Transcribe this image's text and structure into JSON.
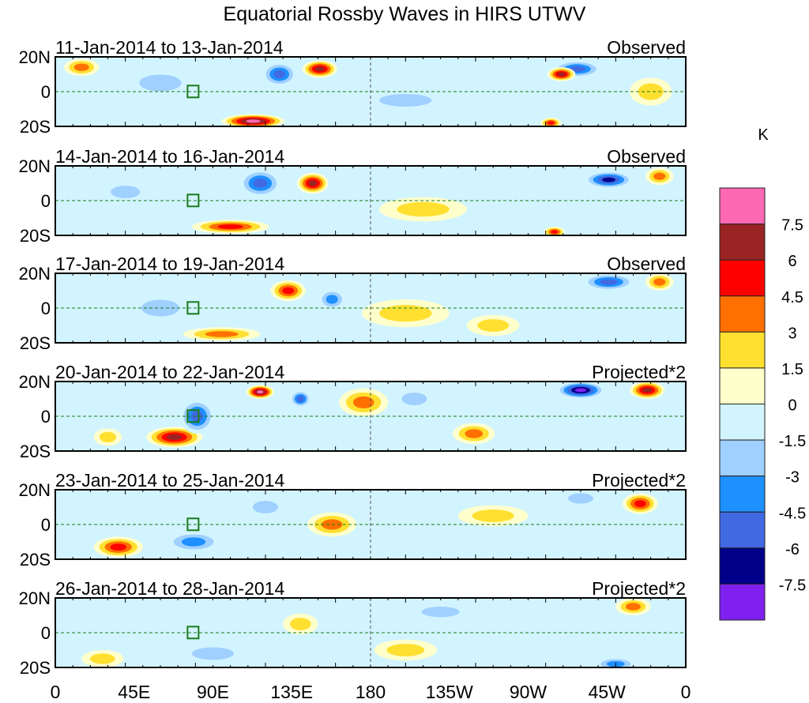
{
  "chart_data": {
    "type": "heatmap",
    "title": "Equatorial Rossby Waves in HIRS UTWV",
    "units": "K",
    "x_ticks": [
      "0",
      "45E",
      "90E",
      "135E",
      "180",
      "135W",
      "90W",
      "45W",
      "0"
    ],
    "y_ticks": [
      "20N",
      "0",
      "20S"
    ],
    "xlim": [
      0,
      360
    ],
    "ylim": [
      -20,
      20
    ],
    "colorbar": {
      "levels": [
        "7.5",
        "6",
        "4.5",
        "3",
        "1.5",
        "0",
        "-1.5",
        "-3",
        "-4.5",
        "-6",
        "-7.5"
      ],
      "level_values": [
        7.5,
        6,
        4.5,
        3,
        1.5,
        0,
        -1.5,
        -3,
        -4.5,
        -6,
        -7.5
      ],
      "colors": [
        "#ff69b4",
        "#9a2424",
        "#ff0000",
        "#ff7000",
        "#ffe030",
        "#ffffcc",
        "#d2f4ff",
        "#9fd0ff",
        "#1e90ff",
        "#4169e1",
        "#00008b",
        "#8020ee"
      ]
    },
    "panels": [
      {
        "dates": "11-Jan-2014 to 13-Jan-2014",
        "type": "Observed",
        "features": [
          [
            151,
            13,
            6.5,
            10,
            5
          ],
          [
            113,
            -17,
            8,
            18,
            4
          ],
          [
            128,
            10,
            -5,
            10,
            7
          ],
          [
            298,
            13,
            -5,
            14,
            5
          ],
          [
            289,
            10,
            6.5,
            8,
            4
          ],
          [
            283,
            -18,
            5,
            6,
            3
          ],
          [
            15,
            14,
            3.5,
            10,
            5
          ],
          [
            200,
            -5,
            -2,
            25,
            6
          ],
          [
            60,
            5,
            -2,
            20,
            8
          ],
          [
            340,
            0,
            2,
            12,
            8
          ]
        ]
      },
      {
        "dates": "14-Jan-2014 to 16-Jan-2014",
        "type": "Observed",
        "features": [
          [
            147,
            10,
            6.5,
            9,
            6
          ],
          [
            117,
            10,
            -5,
            12,
            8
          ],
          [
            100,
            -15,
            5,
            22,
            4
          ],
          [
            316,
            12,
            -7,
            14,
            5
          ],
          [
            210,
            -5,
            2,
            25,
            7
          ],
          [
            285,
            -18,
            5,
            6,
            3
          ],
          [
            40,
            5,
            -2,
            14,
            6
          ],
          [
            345,
            14,
            3.5,
            8,
            5
          ]
        ]
      },
      {
        "dates": "17-Jan-2014 to 19-Jan-2014",
        "type": "Observed",
        "features": [
          [
            133,
            10,
            6,
            10,
            6
          ],
          [
            158,
            5,
            -4,
            8,
            6
          ],
          [
            95,
            -15,
            4,
            22,
            4
          ],
          [
            316,
            15,
            -5,
            15,
            5
          ],
          [
            200,
            -3,
            2,
            25,
            8
          ],
          [
            250,
            -10,
            2,
            15,
            6
          ],
          [
            345,
            15,
            3.5,
            8,
            5
          ],
          [
            60,
            0,
            -2,
            18,
            8
          ]
        ]
      },
      {
        "dates": "20-Jan-2014 to 22-Jan-2014",
        "type": "Projected*2",
        "features": [
          [
            117,
            14,
            8,
            8,
            4
          ],
          [
            176,
            8,
            4,
            14,
            8
          ],
          [
            68,
            -12,
            7,
            16,
            6
          ],
          [
            300,
            15,
            -8,
            14,
            5
          ],
          [
            338,
            15,
            7,
            10,
            5
          ],
          [
            81,
            0,
            -5,
            10,
            10
          ],
          [
            239,
            -10,
            4,
            12,
            6
          ],
          [
            140,
            10,
            -6,
            6,
            5
          ],
          [
            30,
            -12,
            3,
            8,
            5
          ],
          [
            205,
            10,
            -3,
            12,
            6
          ]
        ]
      },
      {
        "dates": "23-Jan-2014 to 25-Jan-2014",
        "type": "Projected*2",
        "features": [
          [
            36,
            -13,
            6,
            14,
            6
          ],
          [
            334,
            12,
            6,
            10,
            6
          ],
          [
            158,
            0,
            4.5,
            14,
            7
          ],
          [
            79,
            -10,
            -4,
            16,
            6
          ],
          [
            120,
            10,
            -3,
            12,
            6
          ],
          [
            250,
            5,
            2,
            20,
            6
          ],
          [
            300,
            15,
            -3,
            12,
            5
          ]
        ]
      },
      {
        "dates": "26-Jan-2014 to 28-Jan-2014",
        "type": "Projected*2",
        "features": [
          [
            27,
            -15,
            2.5,
            12,
            5
          ],
          [
            320,
            -18,
            -4.5,
            12,
            4
          ],
          [
            330,
            15,
            3.5,
            10,
            5
          ],
          [
            140,
            5,
            3,
            10,
            6
          ],
          [
            90,
            -12,
            -2,
            20,
            6
          ],
          [
            220,
            12,
            -2,
            18,
            5
          ],
          [
            200,
            -10,
            2,
            18,
            6
          ]
        ]
      }
    ]
  }
}
